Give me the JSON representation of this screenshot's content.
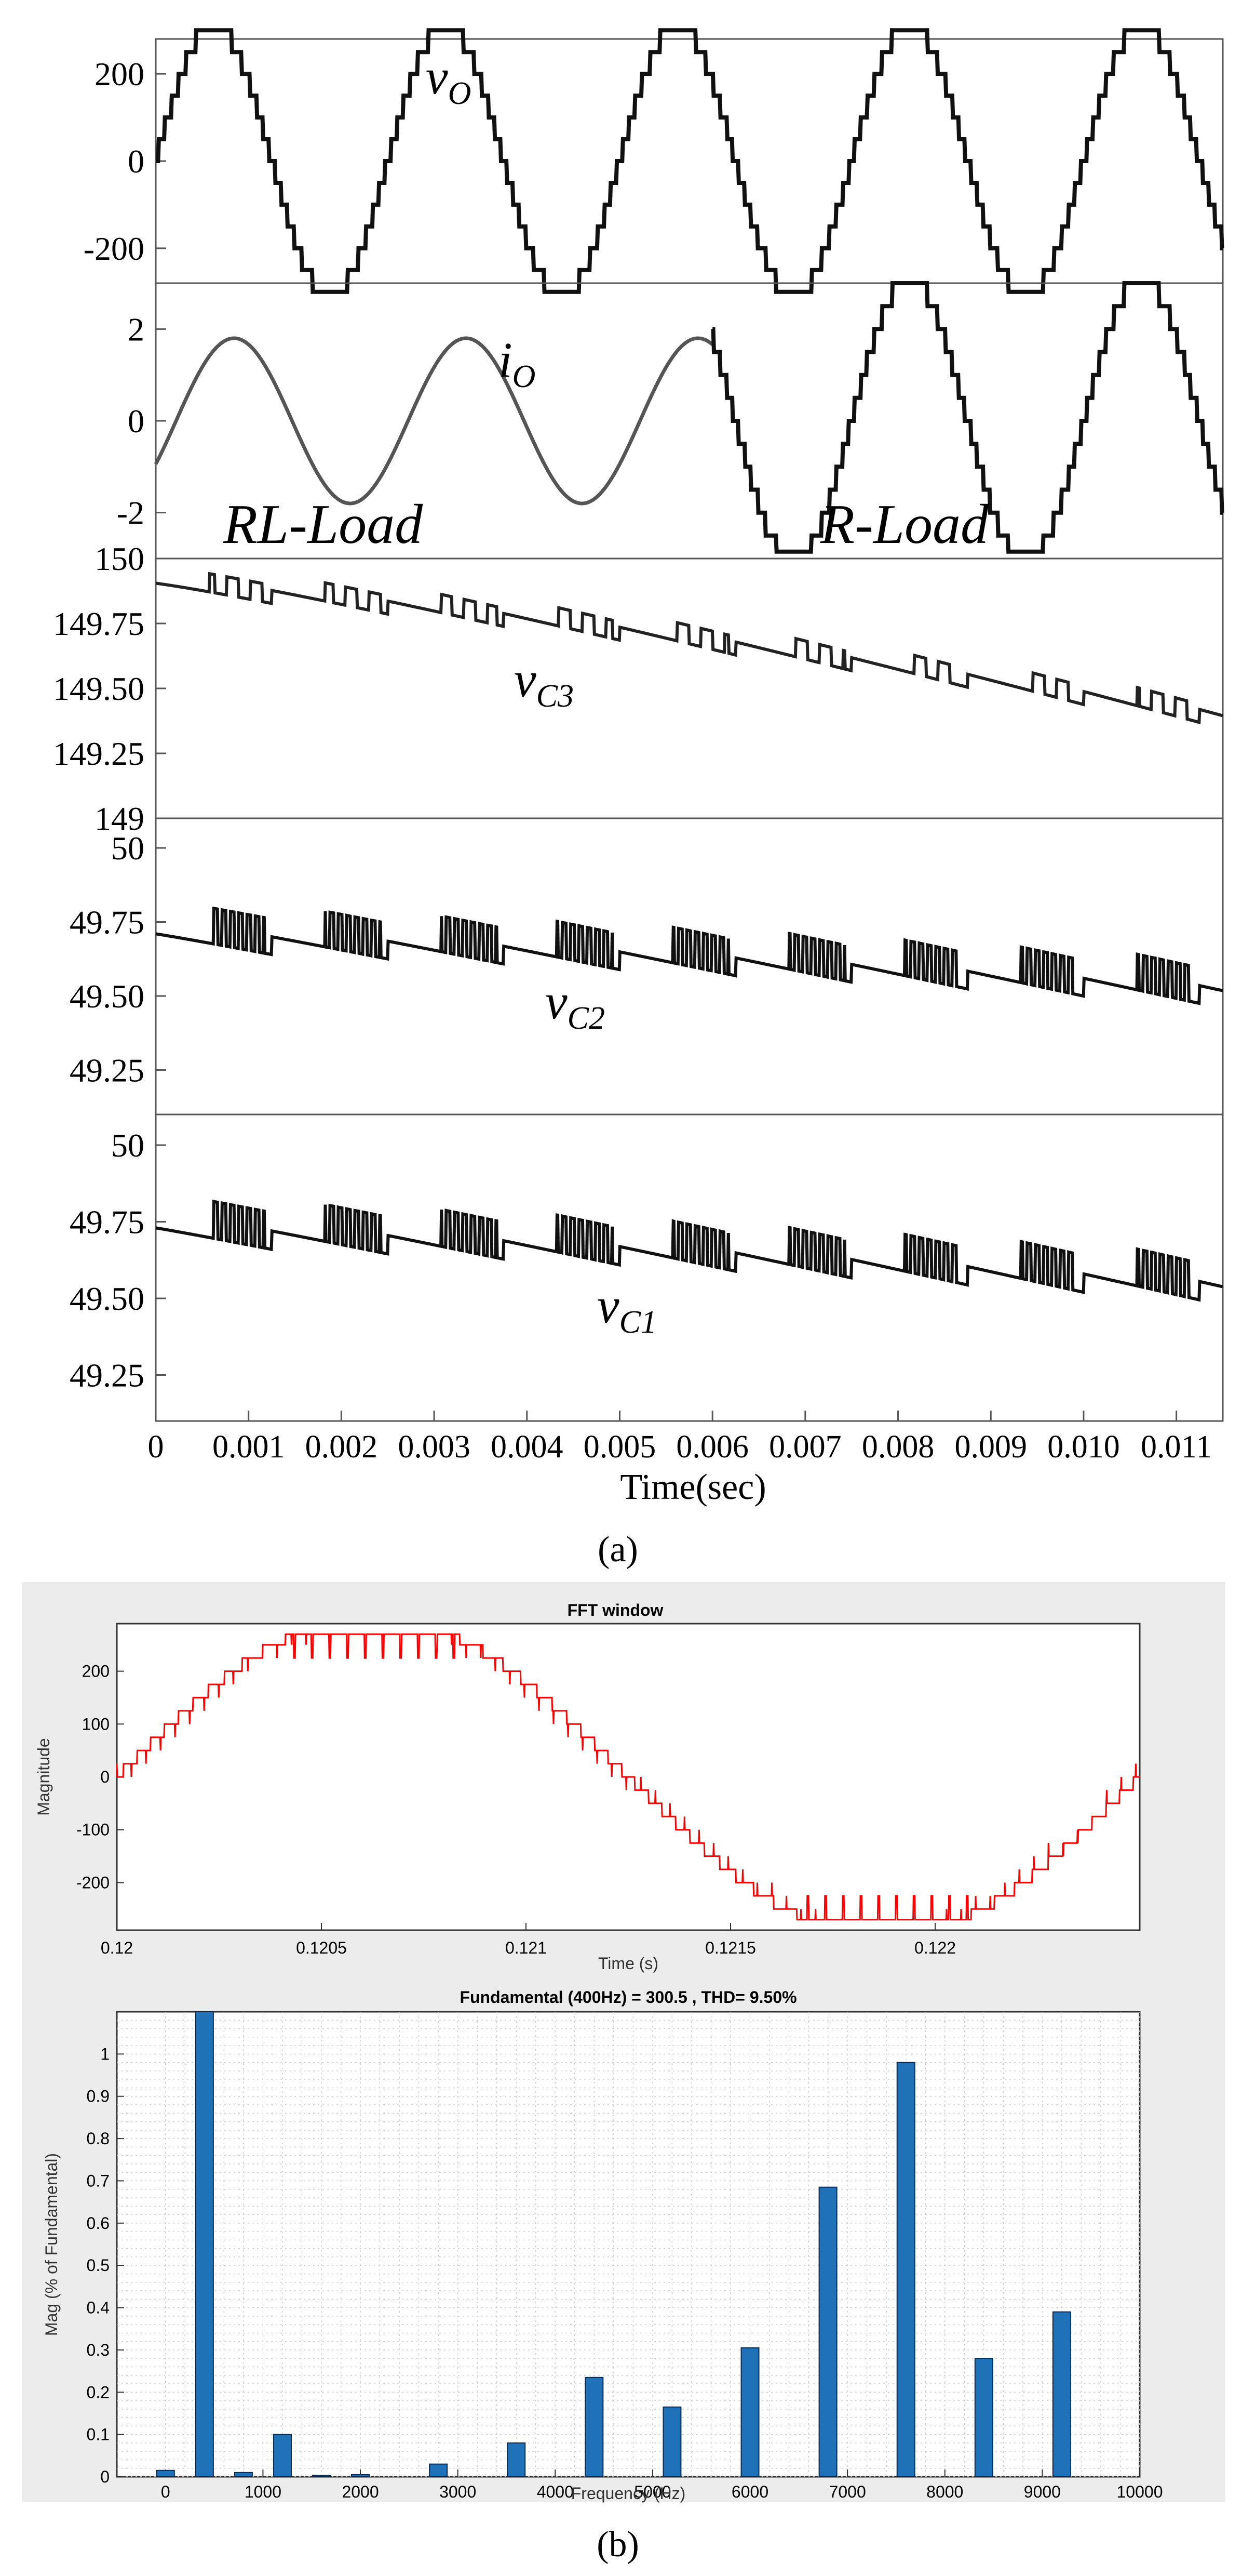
{
  "panel_a": {
    "caption": "(a)",
    "xlabel": "Time(sec)",
    "x_ticks": [
      "0",
      "0.001",
      "0.002",
      "0.003",
      "0.004",
      "0.005",
      "0.006",
      "0.007",
      "0.008",
      "0.009",
      "0.010",
      "0.011"
    ],
    "load_labels": {
      "rl": "RL-Load",
      "r": "R-Load"
    }
  },
  "panel_b": {
    "caption": "(b)",
    "fft_window_title": "FFT window",
    "spectrum_title": "Fundamental (400Hz) = 300.5 , THD= 9.50%"
  },
  "chart_data": [
    {
      "type": "line",
      "id": "vo",
      "series_label": "v",
      "series_sub": "O",
      "x_range": [
        0,
        0.0115
      ],
      "ylim": [
        -280,
        280
      ],
      "yticks": [
        200,
        0,
        -200
      ],
      "ytick_labels": [
        "200",
        "0",
        "-200"
      ],
      "frequency_hz": 400,
      "levels": 7,
      "step_v": 50,
      "peak": 300,
      "color": "#111111"
    },
    {
      "type": "line",
      "id": "io",
      "series_label": "i",
      "series_sub": "O",
      "x_range": [
        0,
        0.0115
      ],
      "ylim": [
        -3,
        3
      ],
      "yticks": [
        2,
        0,
        -2
      ],
      "ytick_labels": [
        "2",
        "0",
        "-2"
      ],
      "segments": [
        {
          "load": "RL",
          "x": [
            0,
            0.006
          ],
          "amplitude": 1.8,
          "shape": "sine"
        },
        {
          "load": "R",
          "x": [
            0.006,
            0.0115
          ],
          "amplitude": 3.0,
          "shape": "staircase"
        }
      ],
      "color": "#444444"
    },
    {
      "type": "line",
      "id": "vc3",
      "series_label": "v",
      "series_sub": "C3",
      "x_range": [
        0,
        0.0115
      ],
      "ylim": [
        149,
        150
      ],
      "yticks": [
        150,
        149.75,
        149.5,
        149.25,
        149
      ],
      "ytick_labels": [
        "150",
        "149.75",
        "149.50",
        "149.25",
        "149"
      ],
      "start": 149.88,
      "end": 149.38,
      "color": "#222222"
    },
    {
      "type": "line",
      "id": "vc2",
      "series_label": "v",
      "series_sub": "C2",
      "x_range": [
        0,
        0.0115
      ],
      "ylim": [
        49.1,
        50.1
      ],
      "yticks": [
        50,
        49.75,
        49.5,
        49.25
      ],
      "ytick_labels": [
        "50",
        "49.75",
        "49.50",
        "49.25"
      ],
      "start": 49.68,
      "end": 49.5,
      "color": "#111111"
    },
    {
      "type": "line",
      "id": "vc1",
      "series_label": "v",
      "series_sub": "C1",
      "x_range": [
        0,
        0.0115
      ],
      "ylim": [
        49.1,
        50.1
      ],
      "yticks": [
        50,
        49.75,
        49.5,
        49.25
      ],
      "ytick_labels": [
        "50",
        "49.75",
        "49.50",
        "49.25"
      ],
      "start": 49.7,
      "end": 49.52,
      "color": "#111111"
    },
    {
      "type": "line",
      "id": "fft_window",
      "title": "FFT window",
      "xlabel": "Time (s)",
      "ylabel": "Magnitude",
      "xlim": [
        0.12,
        0.1225
      ],
      "ylim": [
        -290,
        290
      ],
      "xticks": [
        0.12,
        0.1205,
        0.121,
        0.1215,
        0.122
      ],
      "xtick_labels": [
        "0.12",
        "0.1205",
        "0.121",
        "0.1215",
        "0.122"
      ],
      "yticks": [
        200,
        100,
        0,
        -100,
        -200
      ],
      "ytick_labels": [
        "200",
        "100",
        "0",
        "-100",
        "-200"
      ],
      "peak": 290,
      "frequency_hz": 400,
      "color": "#ff0000"
    },
    {
      "type": "bar",
      "id": "spectrum",
      "title": "Fundamental (400Hz) = 300.5 , THD= 9.50%",
      "xlabel": "Frequency (Hz)",
      "ylabel": "Mag (% of Fundamental)",
      "xlim": [
        -500,
        10000
      ],
      "ylim": [
        0,
        1.1
      ],
      "xticks": [
        0,
        1000,
        2000,
        3000,
        4000,
        5000,
        6000,
        7000,
        8000,
        9000,
        10000
      ],
      "xtick_labels": [
        "0",
        "1000",
        "2000",
        "3000",
        "4000",
        "5000",
        "6000",
        "7000",
        "8000",
        "9000",
        "10000"
      ],
      "yticks": [
        0,
        0.1,
        0.2,
        0.3,
        0.4,
        0.5,
        0.6,
        0.7,
        0.8,
        0.9,
        1
      ],
      "ytick_labels": [
        "0",
        "0.1",
        "0.2",
        "0.3",
        "0.4",
        "0.5",
        "0.6",
        "0.7",
        "0.8",
        "0.9",
        "1"
      ],
      "x": [
        0,
        400,
        800,
        1200,
        1600,
        2000,
        2800,
        3600,
        4400,
        5200,
        6000,
        6800,
        7600,
        8400,
        9200
      ],
      "values": [
        0.015,
        1.1,
        0.01,
        0.1,
        0.003,
        0.005,
        0.03,
        0.08,
        0.235,
        0.165,
        0.305,
        0.685,
        0.98,
        0.28,
        0.39
      ],
      "color": "#1f72b8"
    }
  ]
}
